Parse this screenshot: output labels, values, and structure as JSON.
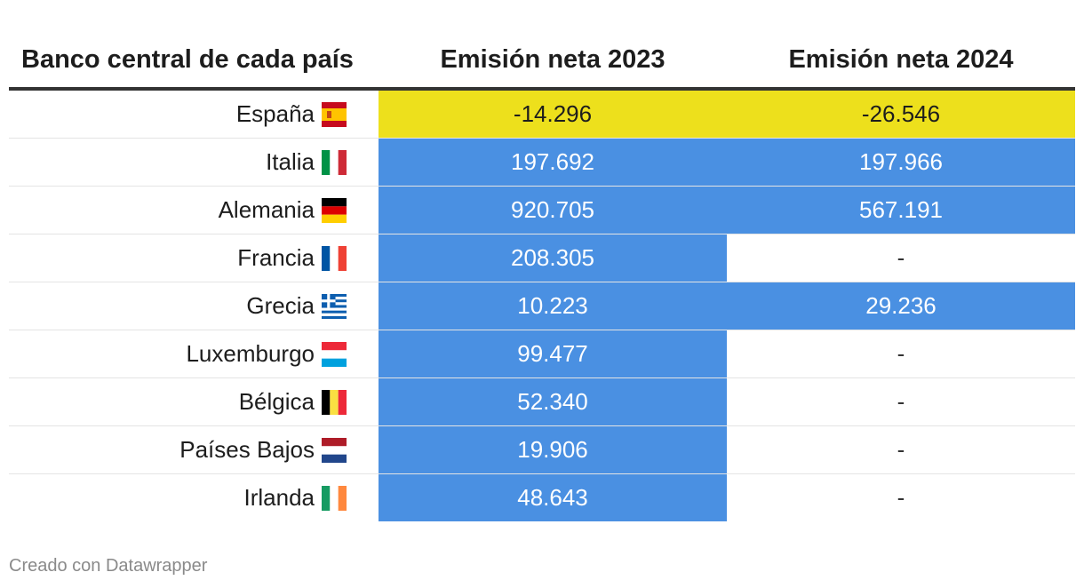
{
  "chart_data": {
    "type": "table",
    "columns": [
      "Banco central de cada país",
      "Emisión neta 2023",
      "Emisión neta 2024"
    ],
    "rows": [
      {
        "country": "España",
        "flag": "es",
        "v2023": "-14.296",
        "v2024": "-26.546",
        "v2023_num": -14296,
        "v2024_num": -26546
      },
      {
        "country": "Italia",
        "flag": "it",
        "v2023": "197.692",
        "v2024": "197.966",
        "v2023_num": 197692,
        "v2024_num": 197966
      },
      {
        "country": "Alemania",
        "flag": "de",
        "v2023": "920.705",
        "v2024": "567.191",
        "v2023_num": 920705,
        "v2024_num": 567191
      },
      {
        "country": "Francia",
        "flag": "fr",
        "v2023": "208.305",
        "v2024": "-",
        "v2023_num": 208305,
        "v2024_num": null
      },
      {
        "country": "Grecia",
        "flag": "gr",
        "v2023": "10.223",
        "v2024": "29.236",
        "v2023_num": 10223,
        "v2024_num": 29236
      },
      {
        "country": "Luxemburgo",
        "flag": "lu",
        "v2023": "99.477",
        "v2024": "-",
        "v2023_num": 99477,
        "v2024_num": null
      },
      {
        "country": "Bélgica",
        "flag": "be",
        "v2023": "52.340",
        "v2024": "-",
        "v2023_num": 52340,
        "v2024_num": null
      },
      {
        "country": "Países Bajos",
        "flag": "nl",
        "v2023": "19.906",
        "v2024": "-",
        "v2023_num": 19906,
        "v2024_num": null
      },
      {
        "country": "Irlanda",
        "flag": "ie",
        "v2023": "48.643",
        "v2024": "-",
        "v2023_num": 48643,
        "v2024_num": null
      }
    ],
    "colors": {
      "positive": "#4a90e2",
      "negative": "#ede01c",
      "empty": "#ffffff"
    }
  },
  "footer": {
    "credit": "Creado con Datawrapper"
  }
}
